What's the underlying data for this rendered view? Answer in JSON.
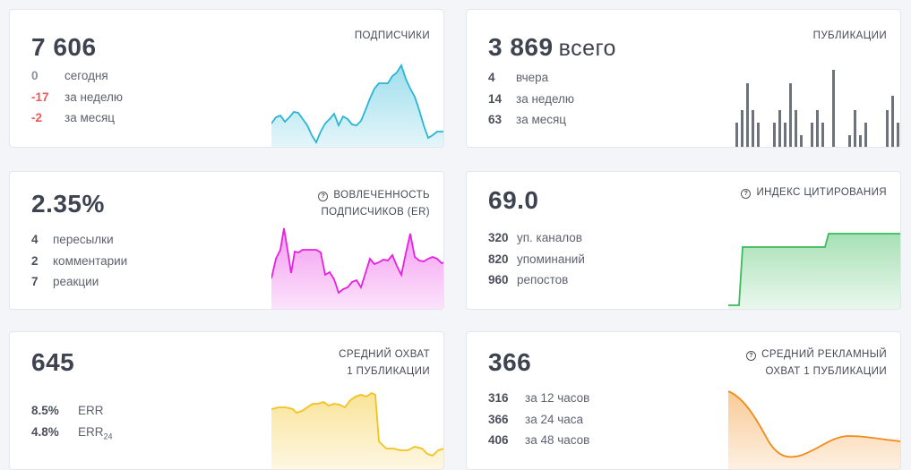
{
  "cards": {
    "subs": {
      "value": "7 606",
      "title": "ПОДПИСЧИКИ",
      "rows": [
        {
          "num": "0",
          "label": "сегодня"
        },
        {
          "num": "-17",
          "label": "за неделю"
        },
        {
          "num": "-2",
          "label": "за месяц"
        }
      ],
      "color": "#29b6d6"
    },
    "posts": {
      "value": "3 869",
      "suffix": "всего",
      "title": "ПУБЛИКАЦИИ",
      "rows": [
        {
          "num": "4",
          "label": "вчера"
        },
        {
          "num": "14",
          "label": "за неделю"
        },
        {
          "num": "63",
          "label": "за месяц"
        }
      ],
      "color": "#6b7380"
    },
    "er": {
      "value": "2.35%",
      "title_line1": "ВОВЛЕЧЕННОСТЬ",
      "title_line2": "ПОДПИСЧИКОВ (ER)",
      "rows": [
        {
          "num": "4",
          "label": "пересылки"
        },
        {
          "num": "2",
          "label": "комментарии"
        },
        {
          "num": "7",
          "label": "реакции"
        }
      ],
      "color": "#e520e0"
    },
    "cit": {
      "value": "69.0",
      "title": "ИНДЕКС ЦИТИРОВАНИЯ",
      "rows": [
        {
          "num": "320",
          "label": "уп. каналов"
        },
        {
          "num": "820",
          "label": "упоминаний"
        },
        {
          "num": "960",
          "label": "репостов"
        }
      ],
      "color": "#3cbb5a"
    },
    "reach": {
      "value": "645",
      "title_line1": "СРЕДНИЙ ОХВАТ",
      "title_line2": "1 ПУБЛИКАЦИИ",
      "rows": [
        {
          "num": "8.5%",
          "label": "ERR",
          "sub": ""
        },
        {
          "num": "4.8%",
          "label": "ERR",
          "sub": "24"
        }
      ],
      "color": "#f3c21c"
    },
    "adreach": {
      "value": "366",
      "title_line1": "СРЕДНИЙ РЕКЛАМНЫЙ",
      "title_line2": "ОХВАТ 1 ПУБЛИКАЦИИ",
      "rows": [
        {
          "num": "316",
          "label": "за 12 часов"
        },
        {
          "num": "366",
          "label": "за 24 часа"
        },
        {
          "num": "406",
          "label": "за 48 часов"
        }
      ],
      "color": "#f28a18"
    }
  },
  "icons": {
    "info": "info-icon"
  }
}
